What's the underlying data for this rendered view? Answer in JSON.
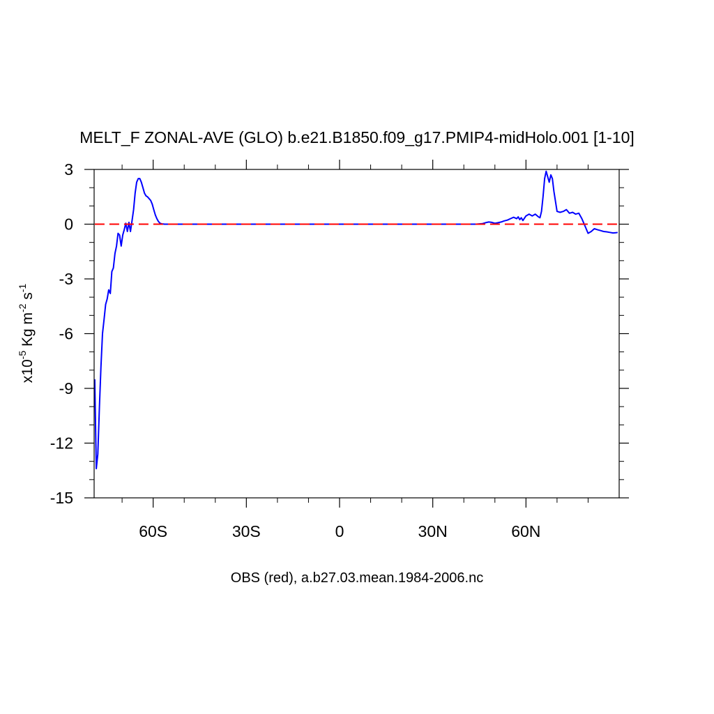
{
  "chart_data": {
    "type": "line",
    "title": "MELT_F ZONAL-AVE (GLO) b.e21.B1850.f09_g17.PMIP4-midHolo.001 [1-10]",
    "subtitle": "OBS (red), a.b27.03.mean.1984-2006.nc",
    "ylabel": {
      "prefix": "x10",
      "exp1": "-5",
      "mid": " Kg m",
      "exp2": "-2",
      "mid2": " s",
      "exp3": "-1"
    },
    "xlim": [
      -79,
      90
    ],
    "ylim": [
      -15,
      3
    ],
    "x_ticks": [
      {
        "value": -60,
        "label": "60S"
      },
      {
        "value": -30,
        "label": "30S"
      },
      {
        "value": 0,
        "label": "0"
      },
      {
        "value": 30,
        "label": "30N"
      },
      {
        "value": 60,
        "label": "60N"
      }
    ],
    "y_ticks": [
      {
        "value": 3,
        "label": "3"
      },
      {
        "value": 0,
        "label": "0"
      },
      {
        "value": -3,
        "label": "-3"
      },
      {
        "value": -6,
        "label": "-6"
      },
      {
        "value": -9,
        "label": "-9"
      },
      {
        "value": -12,
        "label": "-12"
      },
      {
        "value": -15,
        "label": "-15"
      }
    ],
    "series": [
      {
        "color": "#0000ff",
        "dash": false,
        "x": [
          -78.8,
          -78.3,
          -77.8,
          -77.3,
          -76.8,
          -76.3,
          -75.8,
          -75.3,
          -74.8,
          -74.3,
          -73.8,
          -73.3,
          -72.8,
          -72.3,
          -71.8,
          -71.3,
          -70.8,
          -70.3,
          -69.8,
          -69.3,
          -68.8,
          -68.3,
          -67.8,
          -67.3,
          -66.8,
          -66.3,
          -65.8,
          -65.3,
          -64.8,
          -64.3,
          -63.8,
          -63.3,
          -62.8,
          -62.3,
          -61.8,
          -61.3,
          -60.8,
          -60.3,
          -59.8,
          -59.3,
          -58.8,
          -58.3,
          -57.8,
          -57.3,
          -56.8,
          -56.3,
          -55.8,
          -55.3,
          -54.8,
          -54,
          -50,
          -40,
          -30,
          -20,
          -10,
          0,
          10,
          20,
          30,
          40,
          44,
          46,
          47,
          48,
          49,
          50,
          51,
          52,
          53,
          54,
          55,
          56,
          57,
          57.5,
          58,
          58.5,
          59,
          60,
          61,
          62,
          63,
          64,
          64.5,
          65,
          65.5,
          66,
          66.5,
          67,
          67.5,
          68,
          68.5,
          69,
          70,
          71,
          72,
          73,
          74,
          75,
          76,
          77,
          78,
          79,
          80,
          81,
          82,
          83,
          84,
          85,
          86,
          87,
          88,
          89,
          89.5
        ],
        "y": [
          -8.5,
          -13.4,
          -12.6,
          -10.0,
          -7.8,
          -6.0,
          -5.2,
          -4.4,
          -4.1,
          -3.6,
          -3.8,
          -2.6,
          -2.4,
          -1.6,
          -1.2,
          -0.5,
          -0.6,
          -1.2,
          -0.6,
          -0.3,
          0.05,
          -0.4,
          0.1,
          -0.4,
          0.2,
          0.8,
          1.7,
          2.3,
          2.5,
          2.5,
          2.3,
          2.0,
          1.7,
          1.55,
          1.5,
          1.4,
          1.3,
          1.1,
          0.8,
          0.5,
          0.3,
          0.15,
          0.05,
          0.02,
          0.01,
          0.0,
          0.0,
          0.0,
          0.0,
          0.0,
          0.0,
          0.0,
          0.0,
          0.0,
          0.0,
          0.0,
          0.0,
          0.0,
          0.0,
          0.0,
          0.0,
          0.03,
          0.08,
          0.12,
          0.1,
          0.05,
          0.08,
          0.12,
          0.18,
          0.22,
          0.3,
          0.38,
          0.3,
          0.4,
          0.25,
          0.35,
          0.2,
          0.45,
          0.55,
          0.45,
          0.55,
          0.4,
          0.35,
          0.7,
          1.5,
          2.5,
          2.9,
          2.6,
          2.3,
          2.7,
          2.5,
          1.8,
          0.7,
          0.65,
          0.7,
          0.8,
          0.6,
          0.65,
          0.55,
          0.6,
          0.3,
          -0.1,
          -0.5,
          -0.4,
          -0.25,
          -0.3,
          -0.35,
          -0.4,
          -0.42,
          -0.45,
          -0.48,
          -0.47,
          -0.45
        ]
      },
      {
        "color": "#ff0000",
        "dash": true,
        "x": [
          -78.8,
          89.5
        ],
        "y": [
          0.0,
          0.0
        ]
      }
    ],
    "grid": false,
    "legend": "none"
  }
}
